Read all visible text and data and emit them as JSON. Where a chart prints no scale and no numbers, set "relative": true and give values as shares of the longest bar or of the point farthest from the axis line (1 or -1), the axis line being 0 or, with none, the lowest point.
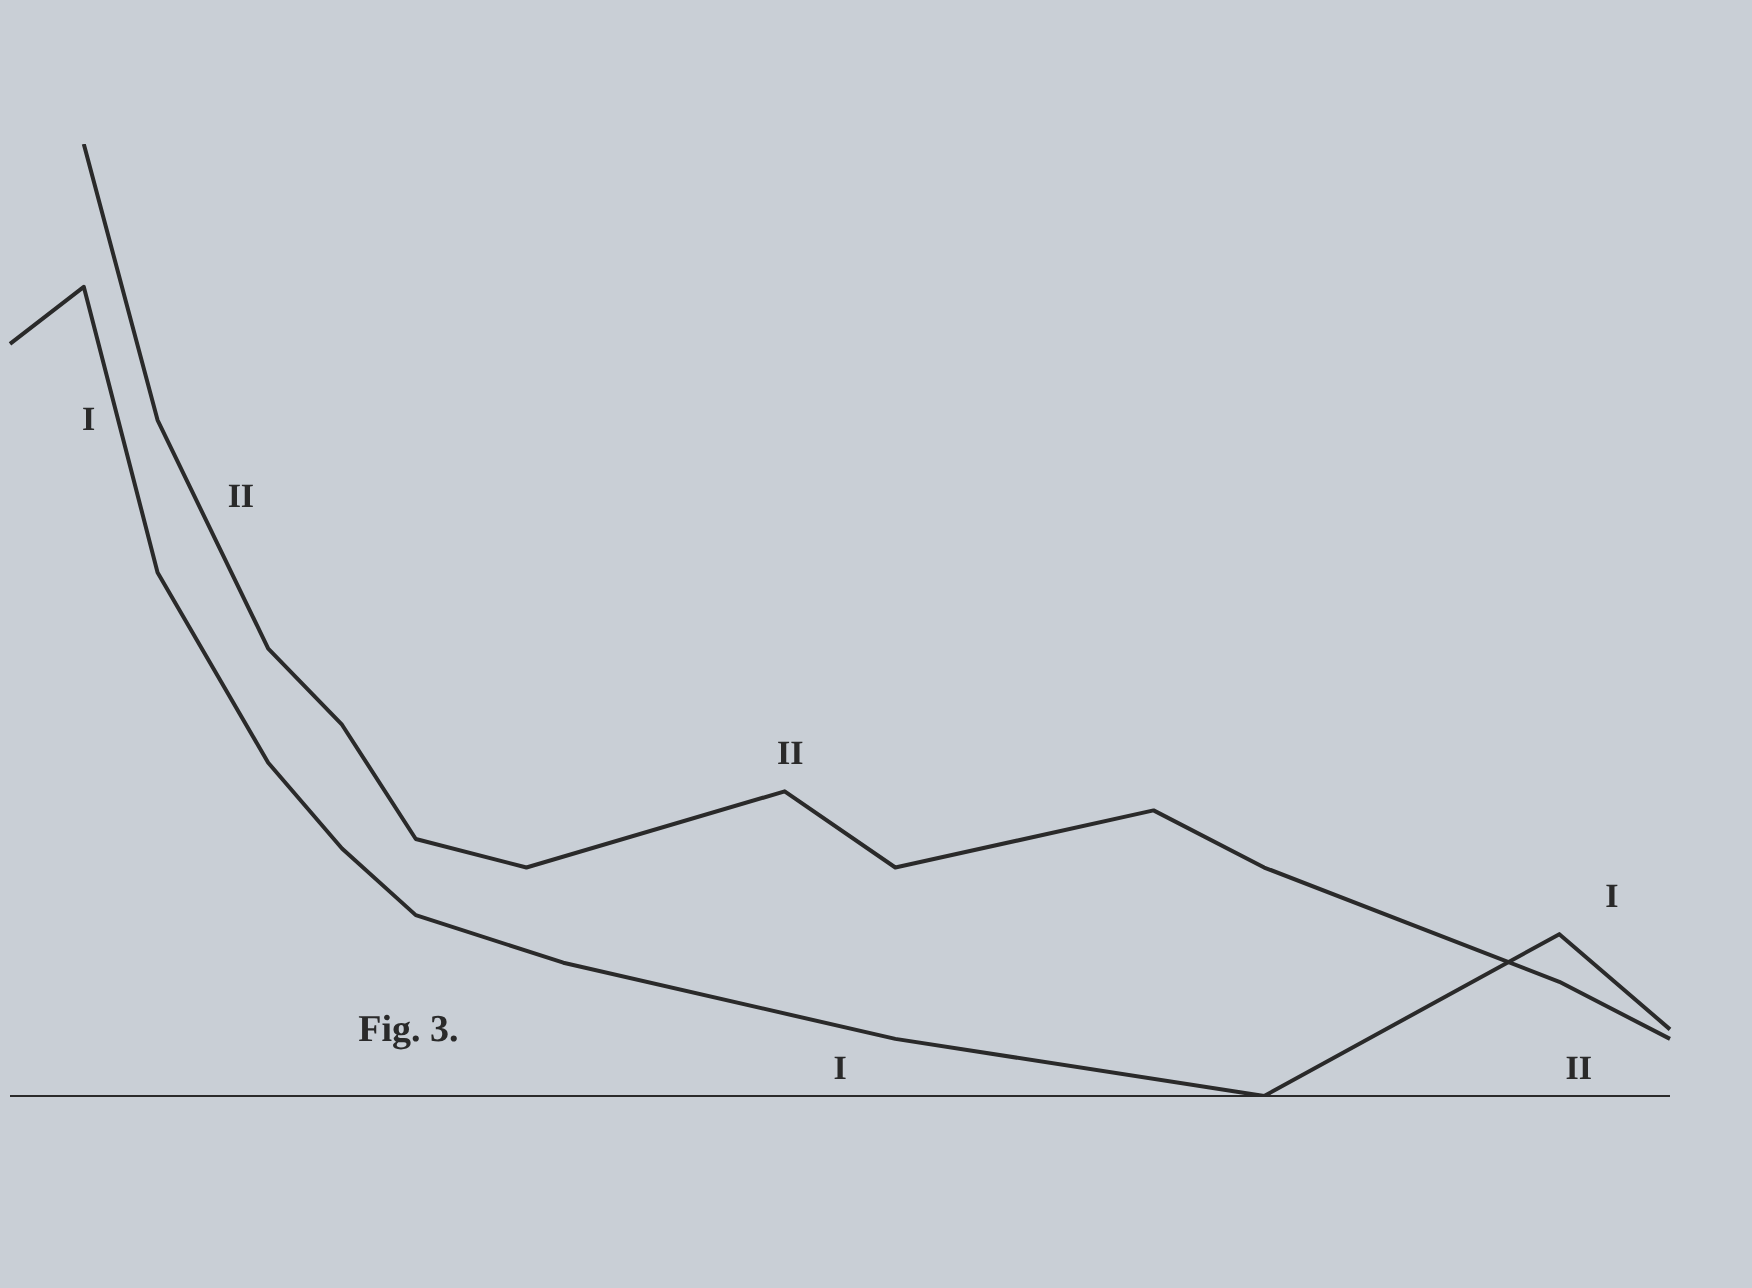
{
  "chart_data": {
    "type": "line",
    "relative": true,
    "tick_labels": false,
    "grid": false,
    "marker": "none",
    "line_style": "solid",
    "categories": [
      null,
      null,
      null,
      null,
      null,
      null,
      null,
      null,
      null,
      null,
      null,
      null,
      null,
      null,
      null,
      null,
      null,
      null,
      null,
      null,
      null,
      null,
      null,
      null,
      null,
      null,
      null,
      null,
      null,
      null,
      null,
      null,
      null,
      null,
      null,
      null,
      null,
      null,
      null,
      null,
      null,
      null,
      null,
      null,
      null,
      null
    ],
    "series": [
      {
        "name": "I",
        "color": "#2a2a2a",
        "values": [
          0.79,
          null,
          0.85,
          null,
          0.55,
          null,
          null,
          0.35,
          null,
          0.26,
          null,
          0.19,
          null,
          null,
          null,
          0.14,
          null,
          null,
          null,
          null,
          null,
          null,
          null,
          null,
          0.06,
          null,
          null,
          null,
          null,
          null,
          null,
          null,
          null,
          null,
          0,
          null,
          null,
          null,
          null,
          null,
          null,
          null,
          0.17,
          null,
          null,
          0.07
        ]
      },
      {
        "name": "II",
        "color": "#2a2a2a",
        "values": [
          null,
          null,
          1,
          null,
          0.71,
          null,
          null,
          0.47,
          null,
          0.39,
          null,
          0.27,
          null,
          null,
          0.24,
          null,
          null,
          null,
          null,
          null,
          null,
          0.32,
          null,
          null,
          0.24,
          null,
          null,
          null,
          null,
          null,
          null,
          0.3,
          null,
          null,
          0.24,
          null,
          null,
          null,
          null,
          null,
          null,
          null,
          0.12,
          null,
          null,
          0.06
        ]
      }
    ],
    "annotations": [
      "Fig. 3.",
      "II",
      "I",
      "I",
      "II"
    ]
  }
}
